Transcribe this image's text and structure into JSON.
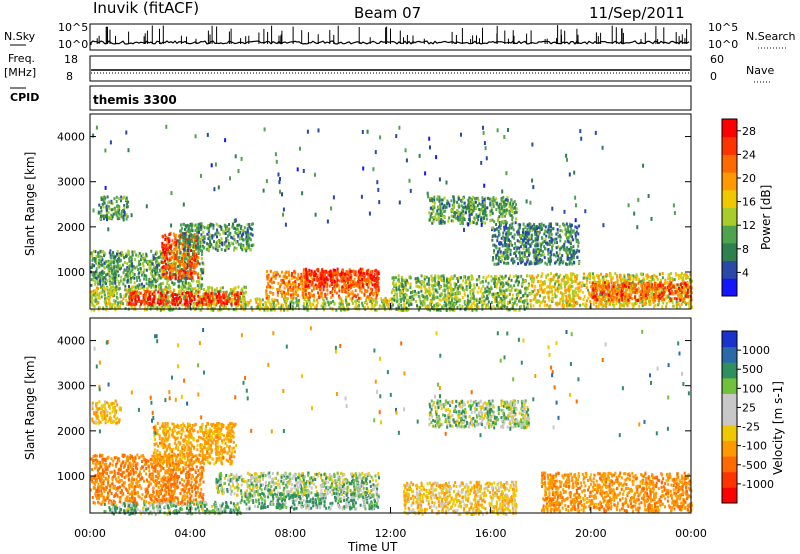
{
  "header": {
    "station": "Inuvik (fitACF)",
    "beam": "Beam 07",
    "date": "11/Sep/2011"
  },
  "panels": {
    "nsky_label": "N.Sky",
    "nsearch_label": "N.Search",
    "count_ticks": [
      "10^5",
      "10^0"
    ],
    "freq_label_1": "Freq.",
    "freq_label_2": "[MHz]",
    "freq_ticks": [
      "18",
      "8"
    ],
    "nave_label": "Nave",
    "nave_ticks": [
      "60",
      "0"
    ],
    "cpid_label": "CPID",
    "cpid_value": "themis 3300"
  },
  "colors": {
    "power_scale": [
      "#1414ff",
      "#2a48a8",
      "#2f7f4f",
      "#4fa34f",
      "#a8cc2a",
      "#f0c800",
      "#ff9900",
      "#ff6a00",
      "#ff3300",
      "#ff0000"
    ],
    "velocity_scale": [
      "#1a33cc",
      "#2a6aa8",
      "#2f8f5f",
      "#6fc23a",
      "#c8c8c8",
      "#c8c8c8",
      "#f0c800",
      "#ff9900",
      "#ff6a00",
      "#ff3300",
      "#ff0000"
    ]
  },
  "chart_data": [
    {
      "type": "heatmap",
      "title": "Power",
      "xlabel": "",
      "ylabel": "Slant Range [km]",
      "xlim_hours": [
        0,
        24
      ],
      "ylim_km": [
        180,
        4500
      ],
      "x_ticks": [
        "00:00",
        "04:00",
        "08:00",
        "12:00",
        "16:00",
        "20:00",
        "00:00"
      ],
      "y_ticks": [
        1000,
        2000,
        3000,
        4000
      ],
      "colorbar": {
        "label": "Power [dB]",
        "ticks": [
          "4",
          "8",
          "12",
          "16",
          "20",
          "24",
          "28"
        ],
        "range": [
          0,
          30
        ]
      },
      "regions": [
        {
          "t0": 0.0,
          "t1": 6.2,
          "r0": 180,
          "r1": 700,
          "value": 14
        },
        {
          "t0": 1.5,
          "t1": 6.0,
          "r0": 300,
          "r1": 600,
          "value": 27
        },
        {
          "t0": 0.0,
          "t1": 4.5,
          "r0": 700,
          "r1": 1500,
          "value": 10
        },
        {
          "t0": 2.8,
          "t1": 4.3,
          "r0": 900,
          "r1": 1900,
          "value": 24
        },
        {
          "t0": 3.5,
          "t1": 6.5,
          "r0": 1500,
          "r1": 2100,
          "value": 9
        },
        {
          "t0": 0.3,
          "t1": 1.5,
          "r0": 2200,
          "r1": 2700,
          "value": 10
        },
        {
          "t0": 6.0,
          "t1": 12.0,
          "r0": 180,
          "r1": 450,
          "value": 14
        },
        {
          "t0": 7.0,
          "t1": 11.5,
          "r0": 450,
          "r1": 1050,
          "value": 22
        },
        {
          "t0": 8.5,
          "t1": 11.5,
          "r0": 700,
          "r1": 1100,
          "value": 26
        },
        {
          "t0": 12.0,
          "t1": 17.5,
          "r0": 180,
          "r1": 950,
          "value": 12
        },
        {
          "t0": 13.5,
          "t1": 17.0,
          "r0": 2100,
          "r1": 2700,
          "value": 10
        },
        {
          "t0": 16.0,
          "t1": 19.5,
          "r0": 1200,
          "r1": 2100,
          "value": 8
        },
        {
          "t0": 17.5,
          "t1": 24.0,
          "r0": 250,
          "r1": 1000,
          "value": 16
        },
        {
          "t0": 20.0,
          "t1": 24.0,
          "r0": 400,
          "r1": 800,
          "value": 24
        }
      ]
    },
    {
      "type": "heatmap",
      "title": "Velocity",
      "xlabel": "Time UT",
      "ylabel": "Slant Range [km]",
      "xlim_hours": [
        0,
        24
      ],
      "ylim_km": [
        180,
        4500
      ],
      "x_ticks": [
        "00:00",
        "04:00",
        "08:00",
        "12:00",
        "16:00",
        "20:00",
        "00:00"
      ],
      "y_ticks": [
        1000,
        2000,
        3000,
        4000
      ],
      "colorbar": {
        "label": "Velocity [m s-1]",
        "ticks": [
          "1000",
          "500",
          "100",
          "25",
          "-25",
          "-100",
          "-500",
          "-1000"
        ]
      },
      "regions": [
        {
          "t0": 0.0,
          "t1": 4.5,
          "r0": 400,
          "r1": 1500,
          "value": -300
        },
        {
          "t0": 2.5,
          "t1": 5.8,
          "r0": 1300,
          "r1": 2200,
          "value": -200
        },
        {
          "t0": 0.0,
          "t1": 1.2,
          "r0": 2200,
          "r1": 2700,
          "value": -150
        },
        {
          "t0": 0.5,
          "t1": 6.0,
          "r0": 180,
          "r1": 450,
          "value": 40
        },
        {
          "t0": 5.0,
          "t1": 11.5,
          "r0": 600,
          "r1": 1100,
          "value": 0
        },
        {
          "t0": 6.0,
          "t1": 11.5,
          "r0": 300,
          "r1": 650,
          "value": 60
        },
        {
          "t0": 13.5,
          "t1": 17.5,
          "r0": 2100,
          "r1": 2700,
          "value": 5
        },
        {
          "t0": 12.5,
          "t1": 17.0,
          "r0": 180,
          "r1": 900,
          "value": -120
        },
        {
          "t0": 18.0,
          "t1": 24.0,
          "r0": 250,
          "r1": 1100,
          "value": -250
        }
      ]
    }
  ]
}
